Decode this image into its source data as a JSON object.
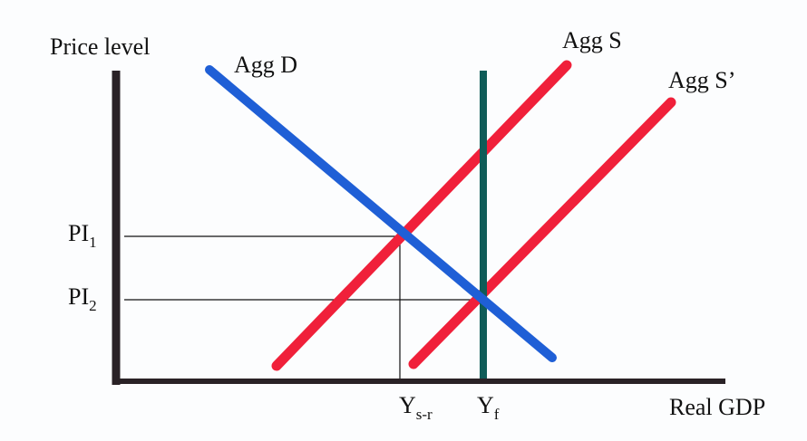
{
  "axes": {
    "y_label": "Price level",
    "x_label": "Real GDP"
  },
  "curves": [
    {
      "label": "Agg D"
    },
    {
      "label": "Agg S"
    },
    {
      "label": "Agg S’"
    }
  ],
  "price_levels": [
    {
      "label": "PI",
      "subscript": "1"
    },
    {
      "label": "PI",
      "subscript": "2"
    }
  ],
  "outputs": [
    {
      "label": "Y",
      "subscript": "s-r"
    },
    {
      "label": "Y",
      "subscript": "f"
    }
  ]
}
